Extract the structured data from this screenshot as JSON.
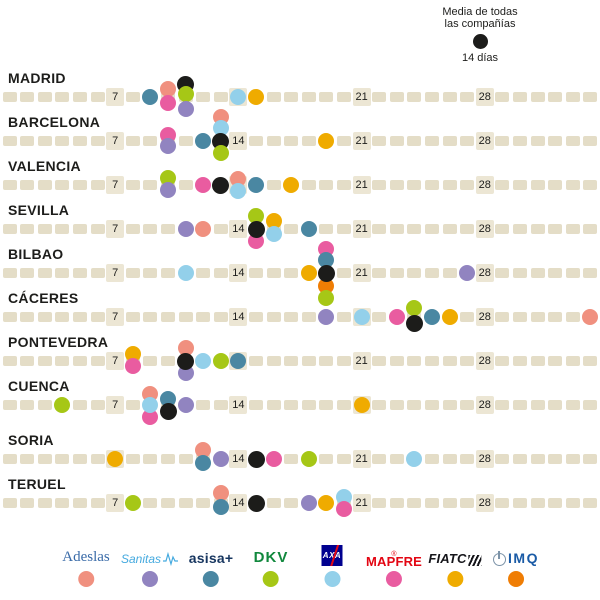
{
  "chart_data": {
    "type": "scatter",
    "x_ticks": [
      7,
      14,
      21,
      28
    ],
    "x_domain": [
      1,
      34
    ],
    "average_legend": {
      "line1": "Media de todas",
      "line2": "las compañías",
      "value": "14 días"
    },
    "average_color": "#1c1c1a",
    "companies": [
      {
        "id": "adeslas",
        "name": "Adeslas",
        "color": "#f0907f"
      },
      {
        "id": "sanitas",
        "name": "Sanitas",
        "color": "#9184c0"
      },
      {
        "id": "asisa",
        "name": "asisa+",
        "color": "#4a87a2"
      },
      {
        "id": "dkv",
        "name": "DKV",
        "color": "#a6c716"
      },
      {
        "id": "axa",
        "name": "AXA",
        "color": "#93d0ea"
      },
      {
        "id": "mapfre",
        "name": "MAPFRE",
        "color": "#e95ca0",
        "mark": "®"
      },
      {
        "id": "fiatc",
        "name": "FIATC",
        "color": "#efab00"
      },
      {
        "id": "imq",
        "name": "IMQ",
        "color": "#ef7d04"
      }
    ],
    "rows": [
      {
        "city": "MADRID",
        "points": [
          {
            "company": "asisa",
            "day": 9,
            "dy": 0
          },
          {
            "company": "adeslas",
            "day": 10,
            "dy": -8
          },
          {
            "company": "mapfre",
            "day": 10,
            "dy": 6
          },
          {
            "company": "media",
            "day": 11,
            "dy": -13
          },
          {
            "company": "dkv",
            "day": 11,
            "dy": -3
          },
          {
            "company": "sanitas",
            "day": 11,
            "dy": 12
          },
          {
            "company": "axa",
            "day": 14,
            "dy": 0
          },
          {
            "company": "fiatc",
            "day": 15,
            "dy": 0
          }
        ]
      },
      {
        "city": "BARCELONA",
        "points": [
          {
            "company": "mapfre",
            "day": 10,
            "dy": -6
          },
          {
            "company": "sanitas",
            "day": 10,
            "dy": 5
          },
          {
            "company": "asisa",
            "day": 12,
            "dy": 0
          },
          {
            "company": "adeslas",
            "day": 13,
            "dy": -24
          },
          {
            "company": "axa",
            "day": 13,
            "dy": -13
          },
          {
            "company": "media",
            "day": 13,
            "dy": 0
          },
          {
            "company": "dkv",
            "day": 13,
            "dy": 12
          },
          {
            "company": "fiatc",
            "day": 19,
            "dy": 0
          }
        ]
      },
      {
        "city": "VALENCIA",
        "points": [
          {
            "company": "dkv",
            "day": 10,
            "dy": -7
          },
          {
            "company": "sanitas",
            "day": 10,
            "dy": 5
          },
          {
            "company": "mapfre",
            "day": 12,
            "dy": 0
          },
          {
            "company": "media",
            "day": 13,
            "dy": 0
          },
          {
            "company": "adeslas",
            "day": 14,
            "dy": -6
          },
          {
            "company": "axa",
            "day": 14,
            "dy": 6
          },
          {
            "company": "asisa",
            "day": 15,
            "dy": 0
          },
          {
            "company": "fiatc",
            "day": 17,
            "dy": 0
          }
        ]
      },
      {
        "city": "SEVILLA",
        "points": [
          {
            "company": "sanitas",
            "day": 11,
            "dy": 0
          },
          {
            "company": "adeslas",
            "day": 12,
            "dy": 0
          },
          {
            "company": "dkv",
            "day": 15,
            "dy": -13
          },
          {
            "company": "mapfre",
            "day": 15,
            "dy": 12
          },
          {
            "company": "media",
            "day": 15,
            "dy": 0
          },
          {
            "company": "fiatc",
            "day": 16,
            "dy": -8
          },
          {
            "company": "axa",
            "day": 16,
            "dy": 5
          },
          {
            "company": "asisa",
            "day": 18,
            "dy": 0
          }
        ]
      },
      {
        "city": "BILBAO",
        "points": [
          {
            "company": "axa",
            "day": 11,
            "dy": 0
          },
          {
            "company": "fiatc",
            "day": 18,
            "dy": 0
          },
          {
            "company": "mapfre",
            "day": 19,
            "dy": -24
          },
          {
            "company": "asisa",
            "day": 19,
            "dy": -13
          },
          {
            "company": "imq",
            "day": 19,
            "dy": 13
          },
          {
            "company": "dkv",
            "day": 19,
            "dy": 25
          },
          {
            "company": "media",
            "day": 19,
            "dy": 0
          },
          {
            "company": "sanitas",
            "day": 27,
            "dy": 0
          }
        ]
      },
      {
        "city": "CÁCERES",
        "points": [
          {
            "company": "sanitas",
            "day": 19,
            "dy": 0
          },
          {
            "company": "axa",
            "day": 21,
            "dy": 0
          },
          {
            "company": "mapfre",
            "day": 23,
            "dy": 0
          },
          {
            "company": "dkv",
            "day": 24,
            "dy": -9
          },
          {
            "company": "media",
            "day": 24,
            "dy": 6
          },
          {
            "company": "asisa",
            "day": 25,
            "dy": 0
          },
          {
            "company": "fiatc",
            "day": 26,
            "dy": 0
          },
          {
            "company": "adeslas",
            "day": 34,
            "dy": 0
          }
        ]
      },
      {
        "city": "PONTEVEDRA",
        "points": [
          {
            "company": "fiatc",
            "day": 8,
            "dy": -7
          },
          {
            "company": "mapfre",
            "day": 8,
            "dy": 5
          },
          {
            "company": "adeslas",
            "day": 11,
            "dy": -13
          },
          {
            "company": "sanitas",
            "day": 11,
            "dy": 12
          },
          {
            "company": "media",
            "day": 11,
            "dy": 0
          },
          {
            "company": "axa",
            "day": 12,
            "dy": 0
          },
          {
            "company": "dkv",
            "day": 13,
            "dy": 0
          },
          {
            "company": "asisa",
            "day": 14,
            "dy": 0
          }
        ]
      },
      {
        "city": "CUENCA",
        "points": [
          {
            "company": "dkv",
            "day": 4,
            "dy": 0
          },
          {
            "company": "adeslas",
            "day": 9,
            "dy": -11
          },
          {
            "company": "mapfre",
            "day": 9,
            "dy": 12
          },
          {
            "company": "axa",
            "day": 9,
            "dy": 0
          },
          {
            "company": "asisa",
            "day": 10,
            "dy": -6
          },
          {
            "company": "media",
            "day": 10,
            "dy": 6
          },
          {
            "company": "sanitas",
            "day": 11,
            "dy": 0
          },
          {
            "company": "fiatc",
            "day": 21,
            "dy": 0
          }
        ]
      },
      {
        "city": "SORIA",
        "points": [
          {
            "company": "fiatc",
            "day": 7,
            "dy": 0
          },
          {
            "company": "adeslas",
            "day": 12,
            "dy": -9
          },
          {
            "company": "asisa",
            "day": 12,
            "dy": 4
          },
          {
            "company": "sanitas",
            "day": 13,
            "dy": 0
          },
          {
            "company": "media",
            "day": 15,
            "dy": 0
          },
          {
            "company": "mapfre",
            "day": 16,
            "dy": 0
          },
          {
            "company": "dkv",
            "day": 18,
            "dy": 0
          },
          {
            "company": "axa",
            "day": 24,
            "dy": 0
          }
        ]
      },
      {
        "city": "TERUEL",
        "points": [
          {
            "company": "dkv",
            "day": 8,
            "dy": 0
          },
          {
            "company": "adeslas",
            "day": 13,
            "dy": -10
          },
          {
            "company": "asisa",
            "day": 13,
            "dy": 4
          },
          {
            "company": "media",
            "day": 15,
            "dy": 0
          },
          {
            "company": "sanitas",
            "day": 18,
            "dy": 0
          },
          {
            "company": "fiatc",
            "day": 19,
            "dy": 0
          },
          {
            "company": "axa",
            "day": 20,
            "dy": -6
          },
          {
            "company": "mapfre",
            "day": 20,
            "dy": 6
          }
        ]
      }
    ]
  }
}
